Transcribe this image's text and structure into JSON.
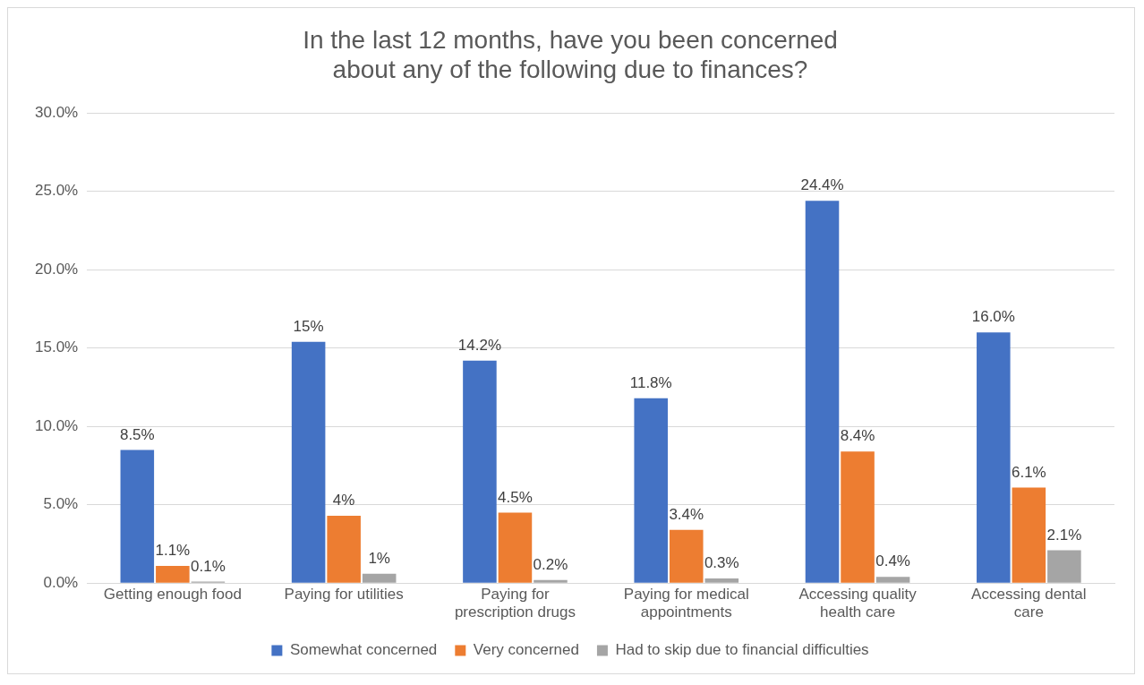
{
  "chart_data": {
    "type": "bar",
    "title": "In the last 12 months, have you been concerned about any of the following due to finances?",
    "categories": [
      "Getting enough food",
      "Paying for utilities",
      "Paying for prescription drugs",
      "Paying for medical appointments",
      "Accessing quality health care",
      "Accessing dental care"
    ],
    "series": [
      {
        "name": "Somewhat concerned",
        "color": "#4472c4",
        "values": [
          8.5,
          15.4,
          14.2,
          11.8,
          24.4,
          16.0
        ],
        "value_labels": [
          "8.5%",
          "15%",
          "14.2%",
          "11.8%",
          "24.4%",
          "16.0%"
        ]
      },
      {
        "name": "Very concerned",
        "color": "#ed7d31",
        "values": [
          1.1,
          4.3,
          4.5,
          3.4,
          8.4,
          6.1
        ],
        "value_labels": [
          "1.1%",
          "4%",
          "4.5%",
          "3.4%",
          "8.4%",
          "6.1%"
        ]
      },
      {
        "name": "Had to skip due to financial difficulties",
        "color": "#a5a5a5",
        "values": [
          0.1,
          0.6,
          0.2,
          0.3,
          0.4,
          2.1
        ],
        "value_labels": [
          "0.1%",
          "1%",
          "0.2%",
          "0.3%",
          "0.4%",
          "2.1%"
        ]
      }
    ],
    "ylim": [
      0,
      30
    ],
    "yticks": [
      {
        "value": 0,
        "label": "0.0%"
      },
      {
        "value": 5,
        "label": "5.0%"
      },
      {
        "value": 10,
        "label": "10.0%"
      },
      {
        "value": 15,
        "label": "15.0%"
      },
      {
        "value": 20,
        "label": "20.0%"
      },
      {
        "value": 25,
        "label": "25.0%"
      },
      {
        "value": 30,
        "label": "30.0%"
      }
    ],
    "grid": "y",
    "legend": "bottom"
  }
}
